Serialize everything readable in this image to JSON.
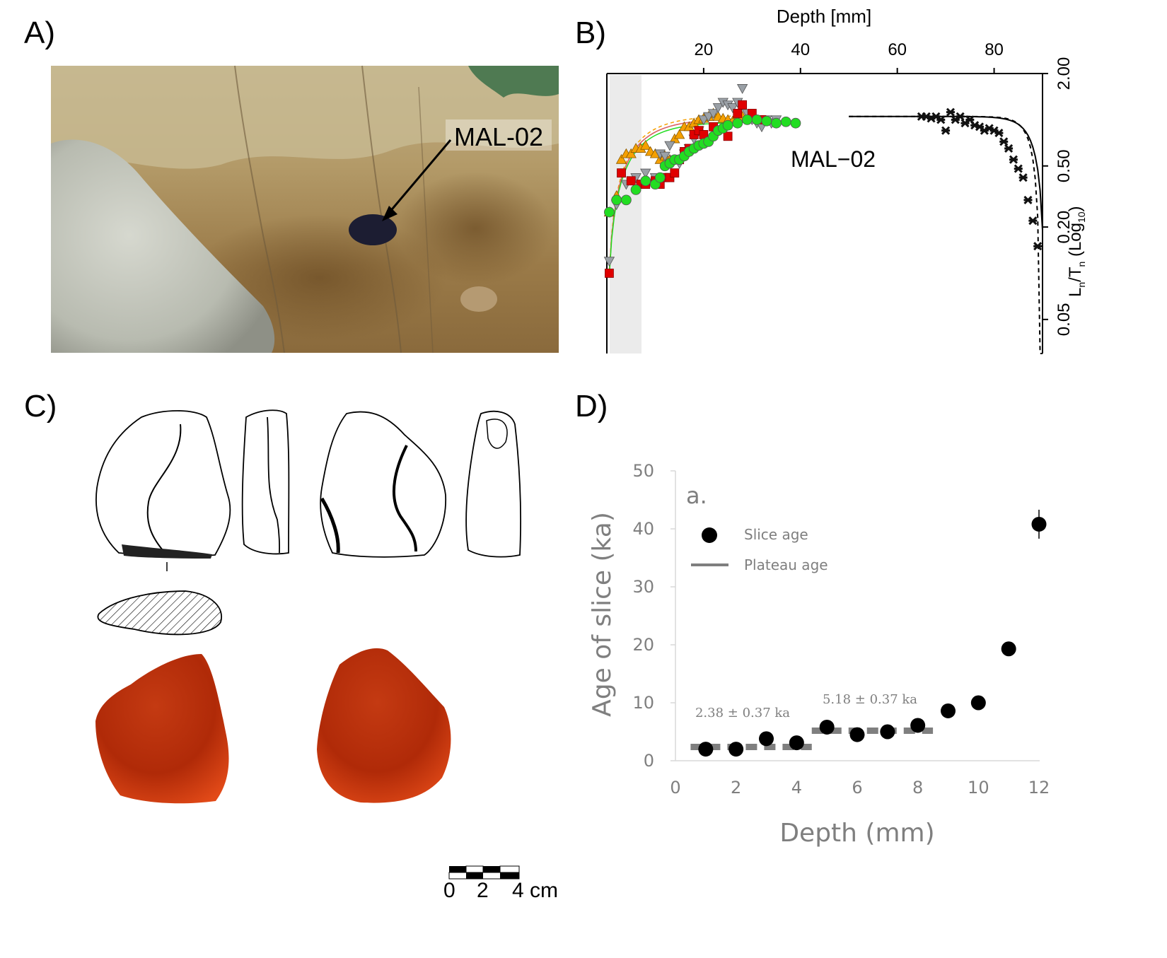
{
  "panels": {
    "a": {
      "letter": "A)",
      "photo_label": "MAL-02"
    },
    "b": {
      "letter": "B)",
      "chart_label": "MAL−02",
      "x_axis_label": "Depth [mm]",
      "x_ticks": [
        "20",
        "40",
        "60",
        "80"
      ],
      "y_ticks": [
        "2.00",
        "0.50",
        "0.20",
        "0.05"
      ],
      "y_axis_label": {
        "main": "L",
        "sub1": "n",
        "mid": "/T",
        "sub2": "n",
        "tail": " (Log",
        "sub3": "10",
        "end": ")"
      }
    },
    "c": {
      "letter": "C)",
      "scale_labels": [
        "0",
        "2",
        "4 cm"
      ]
    },
    "d": {
      "letter": "D)",
      "plot_letter": "a.",
      "x_axis_label": "Depth (mm)",
      "y_axis_label": "Age of slice (ka)",
      "x_ticks": [
        "0",
        "2",
        "4",
        "6",
        "8",
        "10",
        "12"
      ],
      "y_ticks": [
        "0",
        "10",
        "20",
        "30",
        "40",
        "50"
      ],
      "legend": {
        "slice": "Slice age",
        "plateau": "Plateau age"
      },
      "annotations": [
        "2.38 ± 0.37 ka",
        "5.18 ± 0.37 ka"
      ]
    }
  },
  "chart_data": [
    {
      "type": "scatter",
      "panel": "B",
      "x_label": "Depth [mm]",
      "x_range": [
        0,
        90
      ],
      "y_scale": "log10",
      "y_range": [
        0.03,
        2.0
      ],
      "y_ticks": [
        0.05,
        0.2,
        0.5,
        2.0
      ],
      "series": [
        {
          "color": "#f5a000",
          "marker": "triangle-up",
          "x": [
            0.5,
            2,
            3,
            4,
            5,
            6,
            7,
            8,
            9,
            10,
            11,
            12,
            13,
            14,
            15,
            16,
            17,
            18,
            19,
            20,
            21,
            22,
            23,
            24,
            25,
            26,
            27,
            28
          ],
          "y": [
            0.25,
            0.32,
            0.55,
            0.6,
            0.6,
            0.65,
            0.65,
            0.68,
            0.62,
            0.6,
            0.55,
            0.58,
            0.55,
            0.75,
            0.8,
            0.9,
            0.9,
            0.95,
            1.0,
            1.02,
            1.05,
            1.1,
            1.05,
            1.02,
            1.0,
            0.98,
            1.08,
            1.05
          ]
        },
        {
          "color": "#9aa0a6",
          "marker": "triangle-down",
          "x": [
            0.5,
            2,
            4,
            6,
            8,
            10,
            11,
            12,
            13,
            14,
            15,
            16,
            17,
            18,
            19,
            20,
            21,
            22,
            23,
            24,
            25,
            26,
            27,
            28,
            29,
            30,
            31,
            32,
            33,
            34,
            35
          ],
          "y": [
            0.12,
            0.28,
            0.38,
            0.42,
            0.45,
            0.42,
            0.6,
            0.58,
            0.68,
            0.55,
            0.52,
            0.6,
            0.65,
            0.75,
            0.85,
            1.0,
            1.05,
            1.1,
            1.2,
            1.3,
            1.25,
            1.2,
            1.3,
            1.6,
            1.1,
            1.0,
            0.95,
            0.9,
            1.0,
            0.95,
            1.0
          ]
        },
        {
          "color": "#e00000",
          "marker": "square",
          "x": [
            0.5,
            3,
            5,
            7,
            8,
            10,
            11,
            12,
            13,
            14,
            15,
            16,
            17,
            18,
            19,
            20,
            22,
            25,
            27,
            28,
            30,
            32
          ],
          "y": [
            0.1,
            0.45,
            0.4,
            0.38,
            0.38,
            0.4,
            0.38,
            0.42,
            0.42,
            0.45,
            0.55,
            0.62,
            0.65,
            0.8,
            0.85,
            0.8,
            0.9,
            0.78,
            1.1,
            1.25,
            1.1,
            1.0
          ]
        },
        {
          "color": "#22dd22",
          "marker": "circle",
          "x": [
            0.5,
            2,
            4,
            6,
            8,
            10,
            11,
            12,
            13,
            14,
            15,
            16,
            17,
            18,
            19,
            20,
            21,
            22,
            23,
            24,
            25,
            27,
            29,
            31,
            33,
            35,
            37,
            39
          ],
          "y": [
            0.25,
            0.3,
            0.3,
            0.35,
            0.4,
            0.38,
            0.42,
            0.5,
            0.52,
            0.55,
            0.55,
            0.58,
            0.62,
            0.65,
            0.68,
            0.7,
            0.72,
            0.78,
            0.85,
            0.88,
            0.92,
            0.95,
            1.0,
            1.0,
            0.98,
            0.95,
            0.97,
            0.95
          ]
        },
        {
          "color": "#111111",
          "marker": "star",
          "x": [
            65,
            66,
            67,
            68,
            69,
            70,
            71,
            72,
            73,
            74,
            75,
            76,
            77,
            78,
            79,
            80,
            81,
            82,
            83,
            84,
            85,
            86,
            87,
            88,
            89
          ],
          "y": [
            1.05,
            1.05,
            1.02,
            1.05,
            1.0,
            0.85,
            1.12,
            1.0,
            1.05,
            0.95,
            1.0,
            0.92,
            0.9,
            0.85,
            0.88,
            0.85,
            0.82,
            0.72,
            0.65,
            0.55,
            0.48,
            0.42,
            0.3,
            0.22,
            0.15
          ]
        }
      ]
    },
    {
      "type": "scatter",
      "panel": "D",
      "x_label": "Depth (mm)",
      "y_label": "Age of slice (ka)",
      "xlim": [
        0,
        12
      ],
      "ylim": [
        0,
        50
      ],
      "series": [
        {
          "name": "Slice age",
          "x": [
            1,
            2,
            3,
            4,
            5,
            6,
            7,
            8,
            9,
            10,
            11,
            12
          ],
          "y": [
            2.0,
            2.0,
            3.8,
            3.1,
            5.8,
            4.5,
            5.0,
            6.1,
            8.6,
            10.0,
            19.3,
            40.8
          ],
          "err": [
            0.3,
            0.3,
            0.3,
            0.3,
            0.3,
            0.3,
            0.3,
            0.3,
            0.4,
            0.5,
            1.0,
            2.5
          ]
        }
      ],
      "plateaus": [
        {
          "name": "Plateau age",
          "x_range": [
            0.5,
            4.5
          ],
          "y": 2.38
        },
        {
          "name": "Plateau age",
          "x_range": [
            4.5,
            8.5
          ],
          "y": 5.18
        }
      ]
    }
  ]
}
